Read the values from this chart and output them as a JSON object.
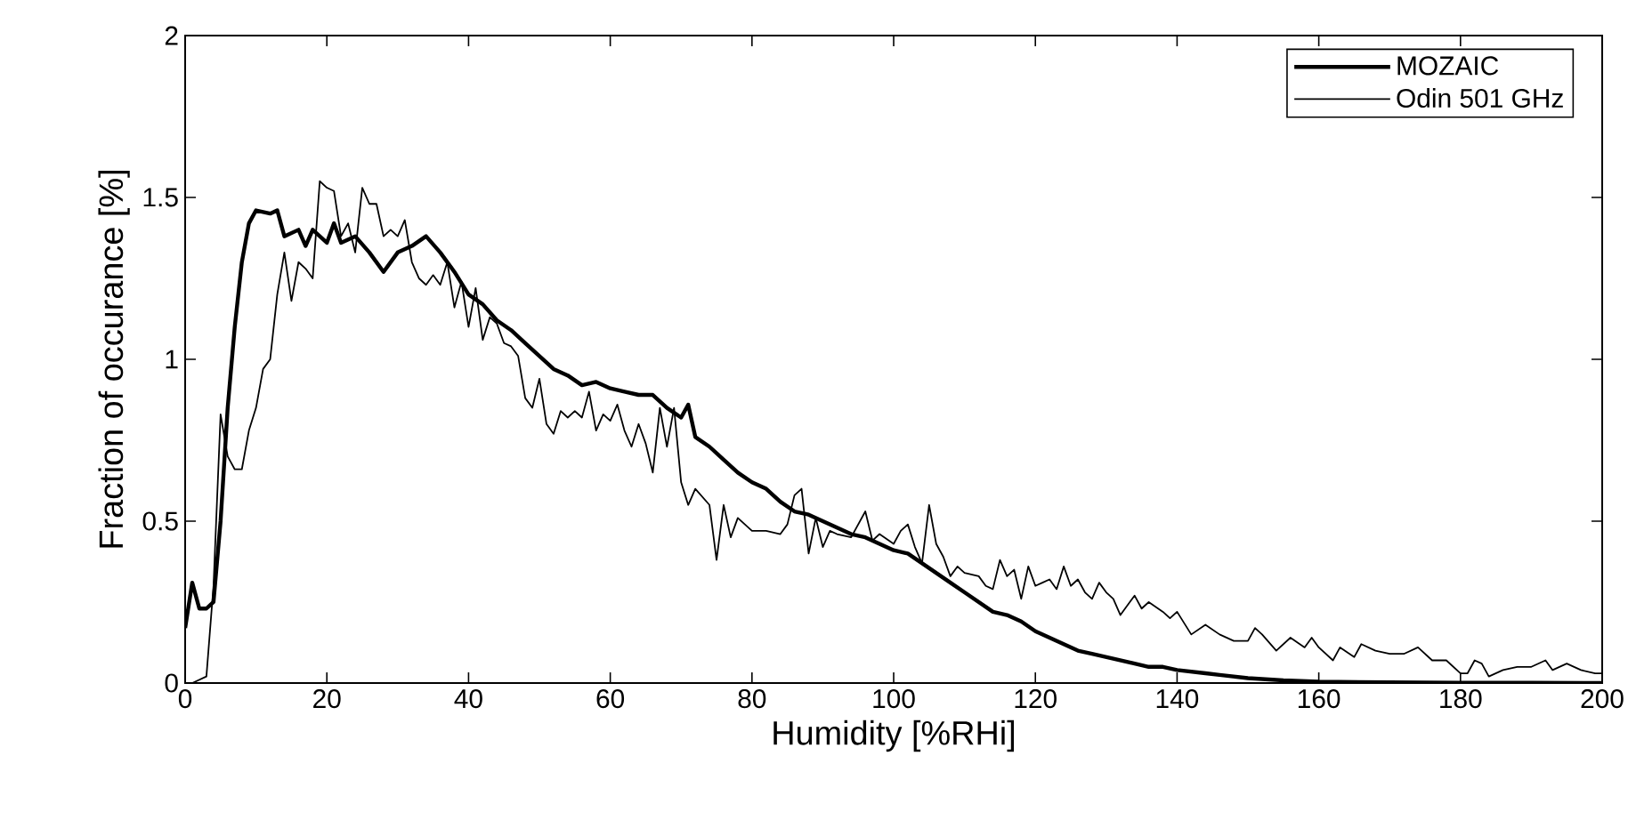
{
  "chart_data": {
    "type": "line",
    "xlabel": "Humidity [%RHi]",
    "ylabel": "Fraction of occurance [%]",
    "xlim": [
      0,
      200
    ],
    "ylim": [
      0,
      2
    ],
    "xticks": [
      0,
      20,
      40,
      60,
      80,
      100,
      120,
      140,
      160,
      180,
      200
    ],
    "yticks": [
      0,
      0.5,
      1,
      1.5,
      2
    ],
    "grid": false,
    "legend": "top right",
    "marker": "none",
    "line_style": "solid",
    "series": [
      {
        "name": "MOZAIC",
        "color": "#000000",
        "x": [
          0,
          1,
          2,
          3,
          4,
          5,
          6,
          7,
          8,
          9,
          10,
          12,
          13,
          14,
          16,
          17,
          18,
          20,
          21,
          22,
          24,
          26,
          28,
          30,
          32,
          34,
          36,
          38,
          40,
          42,
          44,
          46,
          48,
          50,
          52,
          54,
          56,
          58,
          60,
          62,
          64,
          66,
          68,
          70,
          71,
          72,
          74,
          76,
          78,
          80,
          82,
          84,
          86,
          88,
          90,
          92,
          94,
          96,
          98,
          100,
          102,
          104,
          106,
          108,
          110,
          112,
          114,
          116,
          118,
          120,
          122,
          124,
          126,
          128,
          130,
          132,
          134,
          136,
          138,
          140,
          142,
          144,
          146,
          148,
          150,
          155,
          160,
          170,
          180,
          190,
          200
        ],
        "values": [
          0.17,
          0.31,
          0.23,
          0.23,
          0.25,
          0.5,
          0.85,
          1.1,
          1.3,
          1.42,
          1.46,
          1.45,
          1.46,
          1.38,
          1.4,
          1.35,
          1.4,
          1.36,
          1.42,
          1.36,
          1.38,
          1.33,
          1.27,
          1.33,
          1.35,
          1.38,
          1.33,
          1.27,
          1.2,
          1.17,
          1.12,
          1.09,
          1.05,
          1.01,
          0.97,
          0.95,
          0.92,
          0.93,
          0.91,
          0.9,
          0.89,
          0.89,
          0.85,
          0.82,
          0.86,
          0.76,
          0.73,
          0.69,
          0.65,
          0.62,
          0.6,
          0.56,
          0.53,
          0.52,
          0.5,
          0.48,
          0.46,
          0.45,
          0.43,
          0.41,
          0.4,
          0.37,
          0.34,
          0.31,
          0.28,
          0.25,
          0.22,
          0.21,
          0.19,
          0.16,
          0.14,
          0.12,
          0.1,
          0.09,
          0.08,
          0.07,
          0.06,
          0.05,
          0.05,
          0.04,
          0.035,
          0.03,
          0.025,
          0.02,
          0.015,
          0.008,
          0.004,
          0.002,
          0.001,
          0.001,
          0
        ]
      },
      {
        "name": "Odin 501 GHz",
        "color": "#000000",
        "x": [
          0,
          1,
          2,
          3,
          4,
          5,
          6,
          7,
          8,
          9,
          10,
          11,
          12,
          13,
          14,
          15,
          16,
          17,
          18,
          19,
          20,
          21,
          22,
          23,
          24,
          25,
          26,
          27,
          28,
          29,
          30,
          31,
          32,
          33,
          34,
          35,
          36,
          37,
          38,
          39,
          40,
          41,
          42,
          43,
          44,
          45,
          46,
          47,
          48,
          49,
          50,
          51,
          52,
          53,
          54,
          55,
          56,
          57,
          58,
          59,
          60,
          61,
          62,
          63,
          64,
          65,
          66,
          67,
          68,
          69,
          70,
          71,
          72,
          74,
          75,
          76,
          77,
          78,
          80,
          82,
          84,
          85,
          86,
          87,
          88,
          89,
          90,
          91,
          92,
          94,
          96,
          97,
          98,
          100,
          101,
          102,
          103,
          104,
          105,
          106,
          107,
          108,
          109,
          110,
          112,
          113,
          114,
          115,
          116,
          117,
          118,
          119,
          120,
          121,
          122,
          123,
          124,
          125,
          126,
          127,
          128,
          129,
          130,
          131,
          132,
          134,
          135,
          136,
          138,
          139,
          140,
          142,
          144,
          146,
          148,
          150,
          151,
          152,
          154,
          156,
          158,
          159,
          160,
          162,
          163,
          165,
          166,
          168,
          170,
          172,
          174,
          176,
          178,
          180,
          181,
          182,
          183,
          184,
          186,
          188,
          190,
          192,
          193,
          195,
          197,
          199,
          200
        ],
        "values": [
          0,
          0,
          0.01,
          0.02,
          0.3,
          0.83,
          0.7,
          0.66,
          0.66,
          0.78,
          0.85,
          0.97,
          1.0,
          1.2,
          1.33,
          1.18,
          1.3,
          1.28,
          1.25,
          1.55,
          1.53,
          1.52,
          1.38,
          1.42,
          1.33,
          1.53,
          1.48,
          1.48,
          1.38,
          1.4,
          1.38,
          1.43,
          1.3,
          1.25,
          1.23,
          1.26,
          1.23,
          1.3,
          1.16,
          1.24,
          1.1,
          1.22,
          1.06,
          1.13,
          1.11,
          1.05,
          1.04,
          1.01,
          0.88,
          0.85,
          0.94,
          0.8,
          0.77,
          0.84,
          0.82,
          0.84,
          0.82,
          0.9,
          0.78,
          0.83,
          0.81,
          0.86,
          0.78,
          0.73,
          0.8,
          0.74,
          0.65,
          0.85,
          0.73,
          0.85,
          0.62,
          0.55,
          0.6,
          0.55,
          0.38,
          0.55,
          0.45,
          0.51,
          0.47,
          0.47,
          0.46,
          0.49,
          0.58,
          0.6,
          0.4,
          0.51,
          0.42,
          0.47,
          0.46,
          0.45,
          0.53,
          0.44,
          0.46,
          0.43,
          0.47,
          0.49,
          0.42,
          0.37,
          0.55,
          0.43,
          0.39,
          0.33,
          0.36,
          0.34,
          0.33,
          0.3,
          0.29,
          0.38,
          0.33,
          0.35,
          0.26,
          0.36,
          0.3,
          0.31,
          0.32,
          0.29,
          0.36,
          0.3,
          0.32,
          0.28,
          0.26,
          0.31,
          0.28,
          0.26,
          0.21,
          0.27,
          0.23,
          0.25,
          0.22,
          0.2,
          0.22,
          0.15,
          0.18,
          0.15,
          0.13,
          0.13,
          0.17,
          0.15,
          0.1,
          0.14,
          0.11,
          0.14,
          0.11,
          0.07,
          0.11,
          0.08,
          0.12,
          0.1,
          0.09,
          0.09,
          0.11,
          0.07,
          0.07,
          0.03,
          0.03,
          0.07,
          0.06,
          0.02,
          0.04,
          0.05,
          0.05,
          0.07,
          0.04,
          0.06,
          0.04,
          0.03,
          0.03
        ]
      }
    ]
  }
}
